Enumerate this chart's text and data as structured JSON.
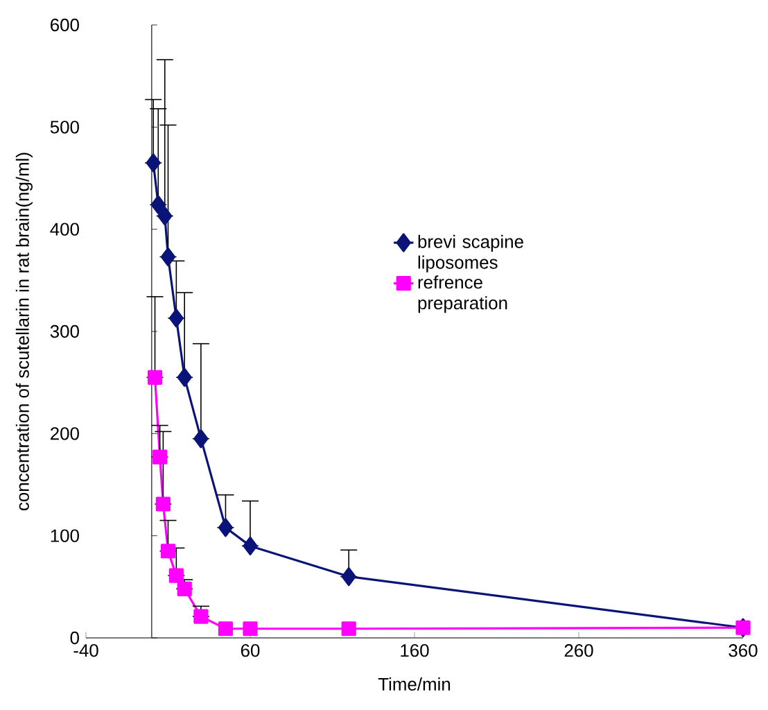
{
  "chart_data": {
    "type": "line",
    "xlabel": "Time/min",
    "ylabel": "concentration of scutellarin in rat brain(ng/ml)",
    "xlim": [
      -40,
      360
    ],
    "xticks": [
      -40,
      60,
      160,
      260,
      360
    ],
    "ylim": [
      0,
      600
    ],
    "yticks": [
      0,
      100,
      200,
      300,
      400,
      500,
      600
    ],
    "grid": false,
    "legend": "right",
    "series": [
      {
        "name": "brevi scapine liposomes",
        "color": "#0a1478",
        "marker": "diamond",
        "x": [
          1,
          4,
          8,
          10,
          15,
          20,
          30,
          45,
          60,
          120,
          360
        ],
        "values": [
          465,
          424,
          413,
          373,
          313,
          255,
          195,
          108,
          90,
          60,
          10
        ],
        "errors": [
          [
            465,
            527
          ],
          [
            424,
            518
          ],
          [
            413,
            566
          ],
          [
            373,
            502
          ],
          [
            313,
            369
          ],
          [
            255,
            338
          ],
          [
            195,
            288
          ],
          [
            108,
            140
          ],
          [
            90,
            134
          ],
          [
            60,
            86
          ],
          null
        ]
      },
      {
        "name": "refrence preparation",
        "color": "#ff00ff",
        "marker": "square",
        "x": [
          2,
          5,
          7,
          10,
          15,
          20,
          30,
          45,
          60,
          120,
          360
        ],
        "values": [
          255,
          177,
          131,
          85,
          61,
          48,
          21,
          9,
          9,
          9,
          10
        ],
        "errors": [
          [
            255,
            334
          ],
          [
            177,
            208
          ],
          [
            131,
            202
          ],
          [
            85,
            115
          ],
          [
            61,
            88
          ],
          [
            48,
            57
          ],
          [
            21,
            31
          ],
          null,
          null,
          null,
          null
        ]
      }
    ]
  }
}
